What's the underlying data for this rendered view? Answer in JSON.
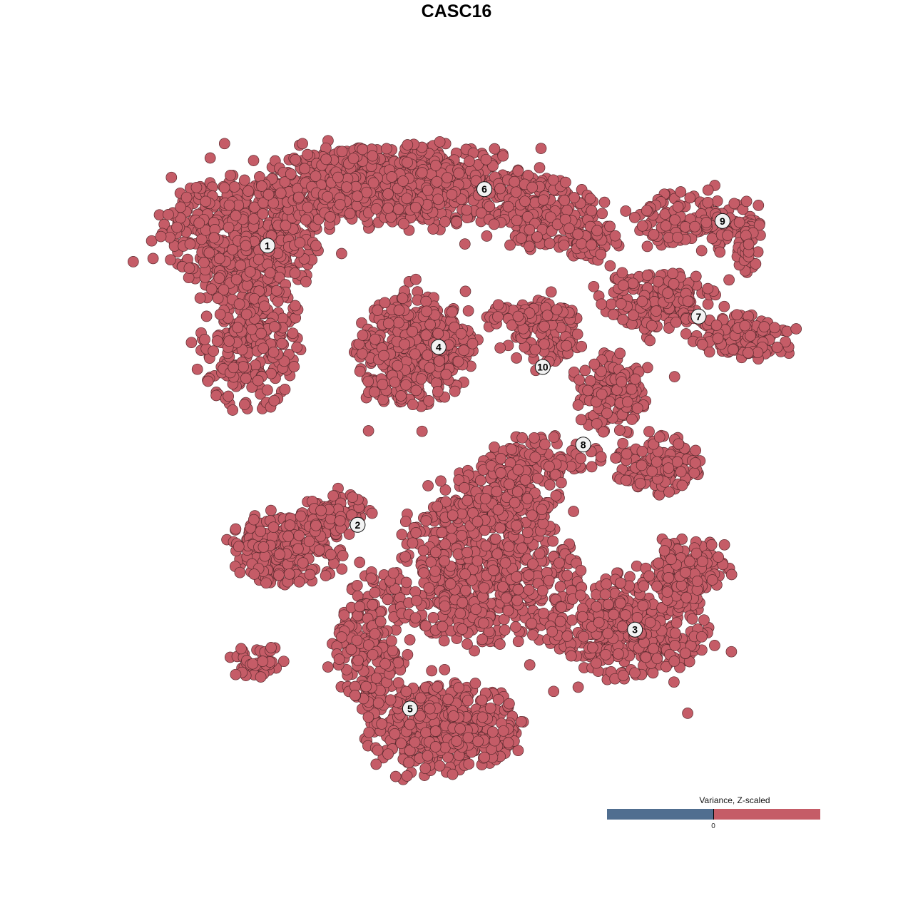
{
  "chart_data": {
    "type": "scatter",
    "title": "CASC16",
    "xlabel": "",
    "ylabel": "",
    "grid": false,
    "axes_visible": false,
    "point_color": "#C55C67",
    "point_stroke": "#5a2a2e",
    "clusters": [
      {
        "label": "1",
        "x": -28.5,
        "y": 31.8
      },
      {
        "label": "6",
        "x": 4.2,
        "y": 40.3
      },
      {
        "label": "9",
        "x": 40.1,
        "y": 35.5
      },
      {
        "label": "7",
        "x": 36.5,
        "y": 21.1
      },
      {
        "label": "4",
        "x": -2.7,
        "y": 16.5
      },
      {
        "label": "10",
        "x": 13.0,
        "y": 13.5
      },
      {
        "label": "8",
        "x": 19.1,
        "y": 1.8
      },
      {
        "label": "2",
        "x": -14.9,
        "y": -10.3
      },
      {
        "label": "3",
        "x": 26.9,
        "y": -26.1
      },
      {
        "label": "5",
        "x": -7.0,
        "y": -38.0
      }
    ],
    "legend": {
      "title": "Variance, Z-scaled",
      "tick_label": "0",
      "negative_color": "#506E90",
      "positive_color": "#C55C67",
      "placement": "bottom-right"
    }
  }
}
